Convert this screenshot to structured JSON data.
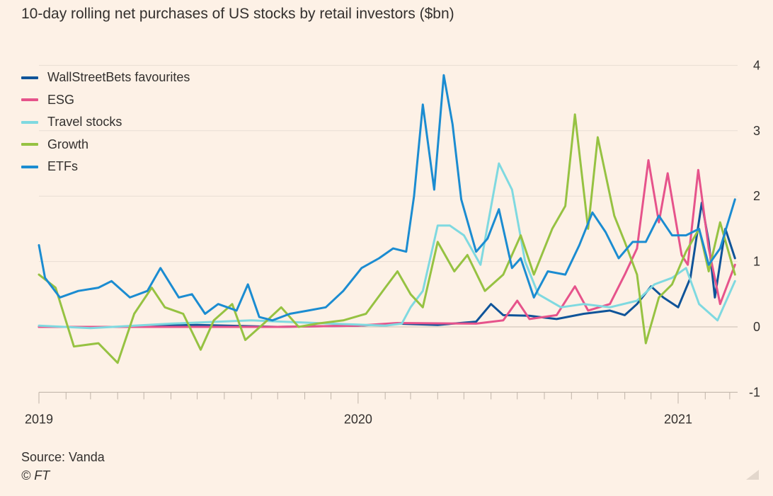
{
  "chart_data": {
    "type": "line",
    "title": "10-day rolling net purchases of US stocks by retail investors ($bn)",
    "x_ticks": [
      "2019",
      "2020",
      "2021"
    ],
    "y_ticks": [
      "-1",
      "0",
      "1",
      "2",
      "3",
      "4"
    ],
    "ylim": [
      -1,
      4
    ],
    "xlim": [
      "2019-01-01",
      "2021-03-10"
    ],
    "grid": true,
    "legend_position": "top-left",
    "source": "Source: Vanda",
    "credit": "© FT",
    "series": [
      {
        "name": "WallStreetBets favourites",
        "color": "#0f5499",
        "points": [
          [
            "2019-01-01",
            0.0
          ],
          [
            "2019-04-01",
            0.0
          ],
          [
            "2019-07-01",
            0.03
          ],
          [
            "2019-10-01",
            0.0
          ],
          [
            "2020-01-01",
            0.02
          ],
          [
            "2020-02-15",
            0.05
          ],
          [
            "2020-04-01",
            0.03
          ],
          [
            "2020-05-15",
            0.08
          ],
          [
            "2020-06-01",
            0.35
          ],
          [
            "2020-06-15",
            0.18
          ],
          [
            "2020-07-15",
            0.17
          ],
          [
            "2020-08-15",
            0.12
          ],
          [
            "2020-09-15",
            0.2
          ],
          [
            "2020-10-15",
            0.25
          ],
          [
            "2020-11-01",
            0.18
          ],
          [
            "2020-11-15",
            0.35
          ],
          [
            "2020-12-01",
            0.62
          ],
          [
            "2020-12-15",
            0.45
          ],
          [
            "2021-01-01",
            0.3
          ],
          [
            "2021-01-15",
            0.75
          ],
          [
            "2021-01-28",
            1.9
          ],
          [
            "2021-02-05",
            1.3
          ],
          [
            "2021-02-12",
            0.45
          ],
          [
            "2021-02-24",
            1.5
          ],
          [
            "2021-03-07",
            1.05
          ]
        ]
      },
      {
        "name": "ESG",
        "color": "#e6538b",
        "points": [
          [
            "2019-01-01",
            0.0
          ],
          [
            "2019-10-01",
            0.0
          ],
          [
            "2020-01-01",
            0.02
          ],
          [
            "2020-02-15",
            0.06
          ],
          [
            "2020-05-15",
            0.05
          ],
          [
            "2020-06-15",
            0.1
          ],
          [
            "2020-07-01",
            0.4
          ],
          [
            "2020-07-15",
            0.12
          ],
          [
            "2020-08-15",
            0.18
          ],
          [
            "2020-09-05",
            0.62
          ],
          [
            "2020-09-20",
            0.25
          ],
          [
            "2020-10-15",
            0.35
          ],
          [
            "2020-11-01",
            0.8
          ],
          [
            "2020-11-15",
            1.2
          ],
          [
            "2020-11-28",
            2.55
          ],
          [
            "2020-12-10",
            1.6
          ],
          [
            "2020-12-20",
            2.35
          ],
          [
            "2021-01-05",
            1.1
          ],
          [
            "2021-01-12",
            0.95
          ],
          [
            "2021-01-24",
            2.4
          ],
          [
            "2021-02-05",
            1.2
          ],
          [
            "2021-02-18",
            0.35
          ],
          [
            "2021-03-07",
            0.95
          ]
        ]
      },
      {
        "name": "Travel stocks",
        "color": "#7fd9e0",
        "points": [
          [
            "2019-01-01",
            0.02
          ],
          [
            "2019-03-01",
            -0.02
          ],
          [
            "2019-06-01",
            0.05
          ],
          [
            "2019-09-01",
            0.1
          ],
          [
            "2019-12-01",
            0.05
          ],
          [
            "2020-02-01",
            0.02
          ],
          [
            "2020-02-20",
            0.05
          ],
          [
            "2020-03-01",
            0.3
          ],
          [
            "2020-03-15",
            0.55
          ],
          [
            "2020-04-01",
            1.55
          ],
          [
            "2020-04-15",
            1.55
          ],
          [
            "2020-05-01",
            1.4
          ],
          [
            "2020-05-20",
            0.95
          ],
          [
            "2020-06-10",
            2.5
          ],
          [
            "2020-06-25",
            2.1
          ],
          [
            "2020-07-10",
            1.0
          ],
          [
            "2020-07-25",
            0.5
          ],
          [
            "2020-08-20",
            0.3
          ],
          [
            "2020-09-15",
            0.35
          ],
          [
            "2020-10-15",
            0.3
          ],
          [
            "2020-11-15",
            0.4
          ],
          [
            "2020-12-05",
            0.65
          ],
          [
            "2020-12-25",
            0.75
          ],
          [
            "2021-01-10",
            0.9
          ],
          [
            "2021-01-25",
            0.35
          ],
          [
            "2021-02-15",
            0.1
          ],
          [
            "2021-03-07",
            0.7
          ]
        ]
      },
      {
        "name": "Growth",
        "color": "#96c242",
        "points": [
          [
            "2019-01-01",
            0.8
          ],
          [
            "2019-01-20",
            0.6
          ],
          [
            "2019-02-10",
            -0.3
          ],
          [
            "2019-03-10",
            -0.25
          ],
          [
            "2019-04-01",
            -0.55
          ],
          [
            "2019-04-20",
            0.2
          ],
          [
            "2019-05-10",
            0.6
          ],
          [
            "2019-05-25",
            0.3
          ],
          [
            "2019-06-15",
            0.2
          ],
          [
            "2019-07-05",
            -0.35
          ],
          [
            "2019-07-20",
            0.1
          ],
          [
            "2019-08-10",
            0.35
          ],
          [
            "2019-08-25",
            -0.2
          ],
          [
            "2019-09-15",
            0.05
          ],
          [
            "2019-10-05",
            0.3
          ],
          [
            "2019-10-25",
            0.0
          ],
          [
            "2019-11-15",
            0.05
          ],
          [
            "2019-12-15",
            0.1
          ],
          [
            "2020-01-10",
            0.2
          ],
          [
            "2020-02-01",
            0.6
          ],
          [
            "2020-02-15",
            0.85
          ],
          [
            "2020-03-01",
            0.5
          ],
          [
            "2020-03-15",
            0.3
          ],
          [
            "2020-04-01",
            1.3
          ],
          [
            "2020-04-20",
            0.85
          ],
          [
            "2020-05-05",
            1.1
          ],
          [
            "2020-05-25",
            0.55
          ],
          [
            "2020-06-15",
            0.8
          ],
          [
            "2020-07-05",
            1.4
          ],
          [
            "2020-07-20",
            0.8
          ],
          [
            "2020-08-10",
            1.5
          ],
          [
            "2020-08-25",
            1.85
          ],
          [
            "2020-09-05",
            3.25
          ],
          [
            "2020-09-20",
            1.5
          ],
          [
            "2020-10-01",
            2.9
          ],
          [
            "2020-10-20",
            1.7
          ],
          [
            "2020-11-01",
            1.3
          ],
          [
            "2020-11-15",
            0.8
          ],
          [
            "2020-11-25",
            -0.25
          ],
          [
            "2020-12-10",
            0.45
          ],
          [
            "2020-12-25",
            0.65
          ],
          [
            "2021-01-10",
            1.15
          ],
          [
            "2021-01-25",
            1.5
          ],
          [
            "2021-02-05",
            0.85
          ],
          [
            "2021-02-18",
            1.6
          ],
          [
            "2021-03-07",
            0.8
          ]
        ]
      },
      {
        "name": "ETFs",
        "color": "#1b8cd1",
        "points": [
          [
            "2019-01-01",
            1.25
          ],
          [
            "2019-01-08",
            0.75
          ],
          [
            "2019-01-25",
            0.45
          ],
          [
            "2019-02-15",
            0.55
          ],
          [
            "2019-03-10",
            0.6
          ],
          [
            "2019-03-25",
            0.7
          ],
          [
            "2019-04-15",
            0.45
          ],
          [
            "2019-05-05",
            0.55
          ],
          [
            "2019-05-20",
            0.9
          ],
          [
            "2019-06-10",
            0.45
          ],
          [
            "2019-06-25",
            0.5
          ],
          [
            "2019-07-10",
            0.2
          ],
          [
            "2019-07-25",
            0.35
          ],
          [
            "2019-08-15",
            0.25
          ],
          [
            "2019-08-28",
            0.65
          ],
          [
            "2019-09-10",
            0.15
          ],
          [
            "2019-09-25",
            0.1
          ],
          [
            "2019-10-15",
            0.2
          ],
          [
            "2019-11-05",
            0.25
          ],
          [
            "2019-11-25",
            0.3
          ],
          [
            "2019-12-15",
            0.55
          ],
          [
            "2020-01-05",
            0.9
          ],
          [
            "2020-01-25",
            1.05
          ],
          [
            "2020-02-10",
            1.2
          ],
          [
            "2020-02-25",
            1.15
          ],
          [
            "2020-03-05",
            2.0
          ],
          [
            "2020-03-15",
            3.4
          ],
          [
            "2020-03-28",
            2.1
          ],
          [
            "2020-04-08",
            3.85
          ],
          [
            "2020-04-18",
            3.1
          ],
          [
            "2020-04-28",
            1.95
          ],
          [
            "2020-05-15",
            1.15
          ],
          [
            "2020-05-28",
            1.35
          ],
          [
            "2020-06-10",
            1.8
          ],
          [
            "2020-06-25",
            0.9
          ],
          [
            "2020-07-05",
            1.05
          ],
          [
            "2020-07-20",
            0.45
          ],
          [
            "2020-08-05",
            0.85
          ],
          [
            "2020-08-25",
            0.8
          ],
          [
            "2020-09-10",
            1.25
          ],
          [
            "2020-09-25",
            1.75
          ],
          [
            "2020-10-10",
            1.45
          ],
          [
            "2020-10-25",
            1.05
          ],
          [
            "2020-11-10",
            1.3
          ],
          [
            "2020-11-25",
            1.3
          ],
          [
            "2020-12-10",
            1.7
          ],
          [
            "2020-12-25",
            1.4
          ],
          [
            "2021-01-10",
            1.4
          ],
          [
            "2021-01-25",
            1.5
          ],
          [
            "2021-02-05",
            0.95
          ],
          [
            "2021-02-18",
            1.2
          ],
          [
            "2021-03-07",
            1.95
          ]
        ]
      }
    ]
  }
}
